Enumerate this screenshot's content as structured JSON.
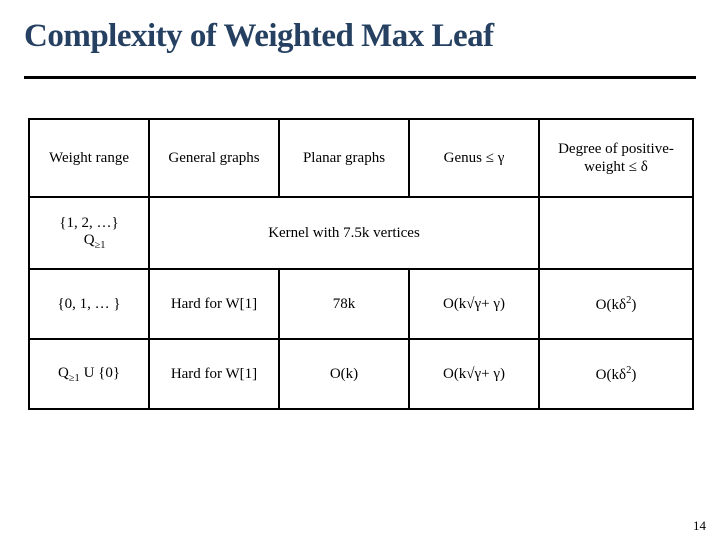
{
  "title": "Complexity of Weighted Max Leaf",
  "pagenum": "14",
  "table": {
    "headers": {
      "c0": "Weight range",
      "c1": "General graphs",
      "c2": "Planar graphs",
      "c3": "Genus ≤ γ",
      "c4": "Degree of positive-weight ≤ δ"
    },
    "row1": {
      "wr_line1": "{1, 2, …}",
      "wr_line2": "Q",
      "wr_sub": "≥1",
      "kernel": "Kernel with 7.5k vertices"
    },
    "row2": {
      "wr": "{0, 1, … }",
      "c1": "Hard for W[1]",
      "c2": "78k",
      "c3": "O(k√γ+ γ)",
      "c4_pre": "O(kδ",
      "c4_sup": "2",
      "c4_post": ")"
    },
    "row3": {
      "wr_pre": "Q",
      "wr_sub": "≥1",
      "wr_post": " U {0}",
      "c1": "Hard for W[1]",
      "c2": "O(k)",
      "c3": "O(k√γ+ γ)",
      "c4_pre": "O(kδ",
      "c4_sup": "2",
      "c4_post": ")"
    }
  },
  "colors": {
    "title": "#254061",
    "border": "#000000",
    "background": "#ffffff"
  }
}
